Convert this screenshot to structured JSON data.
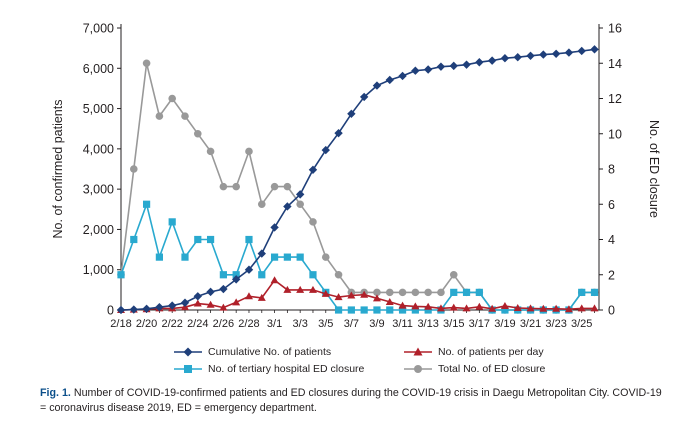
{
  "chart_data": {
    "type": "line",
    "x": [
      "2/18",
      "2/19",
      "2/20",
      "2/21",
      "2/22",
      "2/23",
      "2/24",
      "2/25",
      "2/26",
      "2/27",
      "2/28",
      "2/29",
      "3/1",
      "3/2",
      "3/3",
      "3/4",
      "3/5",
      "3/6",
      "3/7",
      "3/8",
      "3/9",
      "3/10",
      "3/11",
      "3/12",
      "3/13",
      "3/14",
      "3/15",
      "3/16",
      "3/17",
      "3/18",
      "3/19",
      "3/20",
      "3/21",
      "3/22",
      "3/23",
      "3/24",
      "3/25",
      "3/26"
    ],
    "xtick_labels": [
      "2/18",
      "2/20",
      "2/22",
      "2/24",
      "2/26",
      "2/28",
      "3/1",
      "3/3",
      "3/5",
      "3/7",
      "3/9",
      "3/11",
      "3/13",
      "3/15",
      "3/17",
      "3/19",
      "3/21",
      "3/23",
      "3/25"
    ],
    "y_left": {
      "label": "No. of confirmed patients",
      "lim": [
        0,
        7000
      ],
      "ticks": [
        "0",
        "1,000",
        "2,000",
        "3,000",
        "4,000",
        "5,000",
        "6,000",
        "7,000"
      ]
    },
    "y_right": {
      "label": "No. of ED closure",
      "lim": [
        0,
        16
      ],
      "ticks": [
        "0",
        "2",
        "4",
        "6",
        "8",
        "10",
        "12",
        "14",
        "16"
      ]
    },
    "series": [
      {
        "name": "Cumulative No. of patients",
        "axis": "left",
        "color": "#1f3f7a",
        "marker": "diamond",
        "values": [
          1,
          11,
          30,
          70,
          110,
          180,
          340,
          450,
          520,
          760,
          1000,
          1400,
          2050,
          2570,
          2870,
          3480,
          3970,
          4390,
          4870,
          5290,
          5570,
          5710,
          5810,
          5940,
          5970,
          6040,
          6060,
          6090,
          6150,
          6190,
          6250,
          6275,
          6310,
          6340,
          6360,
          6390,
          6430,
          6470
        ]
      },
      {
        "name": "No. of patients per day",
        "axis": "left",
        "color": "#b0202a",
        "marker": "triangle",
        "values": [
          1,
          10,
          20,
          40,
          40,
          70,
          160,
          130,
          60,
          190,
          340,
          300,
          740,
          500,
          500,
          500,
          400,
          320,
          360,
          380,
          290,
          200,
          110,
          90,
          80,
          40,
          60,
          40,
          80,
          30,
          100,
          50,
          40,
          30,
          30,
          20,
          40,
          40
        ]
      },
      {
        "name": "No. of tertiary hospital ED closure",
        "axis": "right",
        "color": "#29a9cf",
        "marker": "square",
        "values": [
          2,
          4,
          6,
          3,
          5,
          3,
          4,
          4,
          2,
          2,
          4,
          2,
          3,
          3,
          3,
          2,
          1,
          0,
          0,
          0,
          0,
          0,
          0,
          0,
          0,
          0,
          1,
          1,
          1,
          0,
          0,
          0,
          0,
          0,
          0,
          0,
          1,
          1
        ]
      },
      {
        "name": "Total No. of ED closure",
        "axis": "right",
        "color": "#999999",
        "marker": "circle",
        "values": [
          2,
          8,
          14,
          11,
          12,
          11,
          10,
          9,
          7,
          7,
          9,
          6,
          7,
          7,
          6,
          5,
          3,
          2,
          1,
          1,
          1,
          1,
          1,
          1,
          1,
          1,
          2,
          1,
          1,
          0,
          0,
          0,
          0,
          0,
          0,
          0,
          1,
          1
        ]
      }
    ]
  },
  "legend": {
    "cumulative": "Cumulative No. of patients",
    "per_day": "No. of patients per day",
    "tertiary": "No. of tertiary hospital ED closure",
    "total": "Total No. of ED closure"
  },
  "caption": {
    "label": "Fig. 1.",
    "text": " Number of COVID-19-confirmed patients and ED closures during the COVID-19 crisis in Daegu Metropolitan City. COVID-19 = coronavirus disease 2019, ED = emergency department."
  }
}
